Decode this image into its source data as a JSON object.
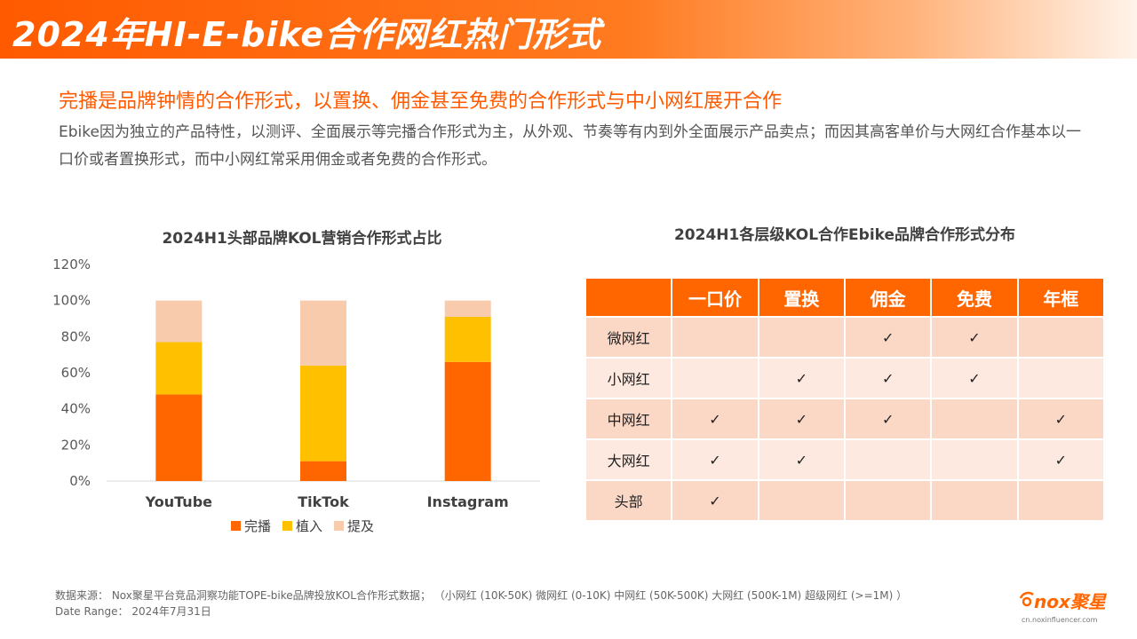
{
  "header": {
    "title": "2024年HI-E-bike合作网红热门形式"
  },
  "intro": {
    "headline": "完播是品牌钟情的合作形式，以置换、佣金甚至免费的合作形式与中小网红展开合作",
    "body": "Ebike因为独立的产品特性，以测评、全面展示等完播合作形式为主，从外观、节奏等有内到外全面展示产品卖点；而因其高客单价与大网红合作基本以一口价或者置换形式，而中小网红常采用佣金或者免费的合作形式。"
  },
  "chart_data": {
    "type": "bar",
    "stacked": true,
    "title": "2024H1头部品牌KOL营销合作形式占比",
    "categories": [
      "YouTube",
      "TikTok",
      "Instagram"
    ],
    "series": [
      {
        "name": "完播",
        "values": [
          48,
          11,
          66
        ],
        "color": "#ff6600"
      },
      {
        "name": "植入",
        "values": [
          29,
          53,
          25
        ],
        "color": "#ffc000"
      },
      {
        "name": "提及",
        "values": [
          23,
          36,
          9
        ],
        "color": "#f8cbad"
      }
    ],
    "yticks": [
      "0%",
      "20%",
      "40%",
      "60%",
      "80%",
      "100%",
      "120%"
    ],
    "ylim": [
      0,
      120
    ],
    "legend_position": "bottom",
    "grid": false
  },
  "table": {
    "title": "2024H1各层级KOL合作Ebike品牌合作形式分布",
    "columns": [
      "一口价",
      "置换",
      "佣金",
      "免费",
      "年框"
    ],
    "check_symbol": "✓",
    "rows": [
      {
        "label": "微网红",
        "cells": [
          "",
          "",
          "✓",
          "✓",
          ""
        ]
      },
      {
        "label": "小网红",
        "cells": [
          "",
          "✓",
          "✓",
          "✓",
          ""
        ]
      },
      {
        "label": "中网红",
        "cells": [
          "✓",
          "✓",
          "✓",
          "",
          "✓"
        ]
      },
      {
        "label": "大网红",
        "cells": [
          "✓",
          "✓",
          "",
          "",
          "✓"
        ]
      },
      {
        "label": "头部",
        "cells": [
          "✓",
          "",
          "",
          "",
          ""
        ]
      }
    ]
  },
  "footer": {
    "source": "数据来源： Nox聚星平台竞品洞察功能TOPE-bike品牌投放KOL合作形式数据； （小网红 (10K-50K) 微网红 (0-10K) 中网红 (50K-500K) 大网红 (500K-1M) 超级网红 (>=1M) ）",
    "date_range": "Date Range： 2024年7月31日"
  },
  "brand": {
    "name": "nox聚星",
    "url": "cn.noxinfluencer.com",
    "color": "#ff6600"
  }
}
